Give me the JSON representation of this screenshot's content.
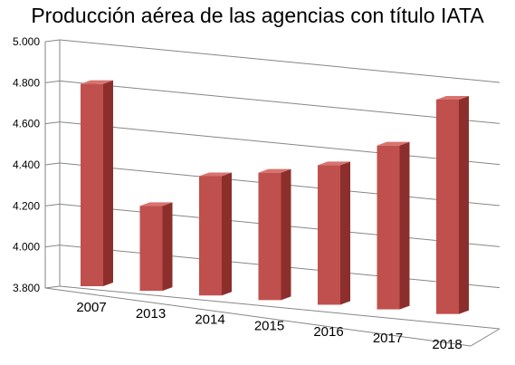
{
  "chart_data": {
    "type": "bar",
    "title": "Producción aérea de las agencias con título IATA",
    "categories": [
      "2007",
      "2013",
      "2014",
      "2015",
      "2016",
      "2017",
      "2018"
    ],
    "values": [
      4800,
      4220,
      4390,
      4430,
      4490,
      4610,
      4860
    ],
    "ylim": [
      3800,
      5000
    ],
    "yticks": [
      "3.800",
      "4.000",
      "4.200",
      "4.400",
      "4.600",
      "4.800",
      "5.000"
    ],
    "xlabel": "",
    "ylabel": "",
    "grid": true,
    "legend": "none",
    "colors": {
      "bar_front": "#c0504d",
      "bar_side": "#8c2f2c",
      "bar_top": "#d9736f",
      "grid": "#868686"
    }
  }
}
